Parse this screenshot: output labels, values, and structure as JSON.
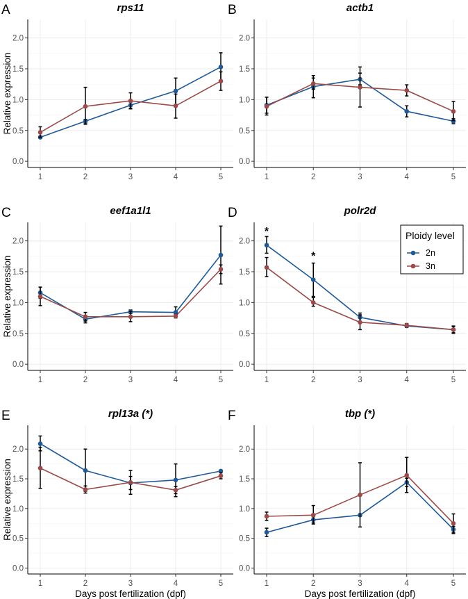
{
  "legend": {
    "title": "Ploidy level",
    "items": [
      {
        "name": "2n",
        "color": "#1f5a96"
      },
      {
        "name": "3n",
        "color": "#9b4a4a"
      }
    ]
  },
  "axis_text": {
    "xlabel": "Days post fertilization (dpf)",
    "ylabel": "Relative expression"
  },
  "chart_data": [
    {
      "type": "line",
      "letter": "A",
      "title": "rps11",
      "x": [
        1,
        2,
        3,
        4,
        5
      ],
      "x_ticks": [
        "1",
        "2",
        "3",
        "4",
        "5"
      ],
      "y_ticks": [
        "0.0",
        "0.5",
        "1.0",
        "1.5",
        "2.0"
      ],
      "ylim": [
        -0.1,
        2.3
      ],
      "grid": true,
      "series": [
        {
          "name": "2n",
          "color": "#1f5a96",
          "values": [
            0.39,
            0.65,
            0.91,
            1.14,
            1.53
          ],
          "err_low": [
            0.37,
            0.62,
            0.86,
            0.92,
            1.31
          ],
          "err_high": [
            0.41,
            0.68,
            0.96,
            1.35,
            1.76
          ]
        },
        {
          "name": "3n",
          "color": "#9b4a4a",
          "values": [
            0.47,
            0.89,
            0.98,
            0.9,
            1.3
          ],
          "err_low": [
            0.39,
            0.6,
            0.85,
            0.7,
            1.15
          ],
          "err_high": [
            0.56,
            1.2,
            1.11,
            1.09,
            1.45
          ]
        }
      ],
      "annotations": []
    },
    {
      "type": "line",
      "letter": "B",
      "title": "actb1",
      "x": [
        1,
        2,
        3,
        4,
        5
      ],
      "x_ticks": [
        "1",
        "2",
        "3",
        "4",
        "5"
      ],
      "y_ticks": [
        "0.0",
        "0.5",
        "1.0",
        "1.5",
        "2.0"
      ],
      "ylim": [
        -0.1,
        2.3
      ],
      "grid": true,
      "series": [
        {
          "name": "2n",
          "color": "#1f5a96",
          "values": [
            0.91,
            1.21,
            1.33,
            0.81,
            0.65
          ],
          "err_low": [
            0.78,
            1.03,
            1.24,
            0.72,
            0.61
          ],
          "err_high": [
            1.04,
            1.39,
            1.43,
            0.9,
            0.69
          ]
        },
        {
          "name": "3n",
          "color": "#9b4a4a",
          "values": [
            0.89,
            1.26,
            1.2,
            1.15,
            0.81
          ],
          "err_low": [
            0.75,
            1.17,
            0.88,
            1.06,
            0.66
          ],
          "err_high": [
            1.04,
            1.35,
            1.53,
            1.24,
            0.97
          ]
        }
      ],
      "annotations": []
    },
    {
      "type": "line",
      "letter": "C",
      "title": "eef1a1l1",
      "x": [
        1,
        2,
        3,
        4,
        5
      ],
      "x_ticks": [
        "1",
        "2",
        "3",
        "4",
        "5"
      ],
      "y_ticks": [
        "0.0",
        "0.5",
        "1.0",
        "1.5",
        "2.0"
      ],
      "ylim": [
        -0.1,
        2.3
      ],
      "grid": true,
      "series": [
        {
          "name": "2n",
          "color": "#1f5a96",
          "values": [
            1.16,
            0.73,
            0.85,
            0.84,
            1.77
          ],
          "err_low": [
            1.07,
            0.67,
            0.82,
            0.76,
            1.3
          ],
          "err_high": [
            1.25,
            0.79,
            0.88,
            0.93,
            2.24
          ]
        },
        {
          "name": "3n",
          "color": "#9b4a4a",
          "values": [
            1.1,
            0.77,
            0.77,
            0.78,
            1.54
          ],
          "err_low": [
            0.95,
            0.7,
            0.69,
            0.75,
            1.47
          ],
          "err_high": [
            1.25,
            0.84,
            0.86,
            0.81,
            1.61
          ]
        }
      ],
      "annotations": []
    },
    {
      "type": "line",
      "letter": "D",
      "title": "polr2d",
      "x": [
        1,
        2,
        3,
        4,
        5
      ],
      "x_ticks": [
        "1",
        "2",
        "3",
        "4",
        "5"
      ],
      "y_ticks": [
        "0.0",
        "0.5",
        "1.0",
        "1.5",
        "2.0"
      ],
      "ylim": [
        -0.1,
        2.3
      ],
      "grid": true,
      "series": [
        {
          "name": "2n",
          "color": "#1f5a96",
          "values": [
            1.93,
            1.37,
            0.76,
            0.62,
            0.56
          ],
          "err_low": [
            1.8,
            1.1,
            0.69,
            0.6,
            0.5
          ],
          "err_high": [
            2.07,
            1.64,
            0.83,
            0.64,
            0.62
          ]
        },
        {
          "name": "3n",
          "color": "#9b4a4a",
          "values": [
            1.57,
            1.0,
            0.68,
            0.63,
            0.56
          ],
          "err_low": [
            1.42,
            0.94,
            0.56,
            0.6,
            0.51
          ],
          "err_high": [
            1.73,
            1.08,
            0.8,
            0.66,
            0.61
          ]
        }
      ],
      "annotations": [
        {
          "text": "*",
          "x": 1,
          "y": 2.2
        },
        {
          "text": "*",
          "x": 2,
          "y": 1.8
        }
      ]
    },
    {
      "type": "line",
      "letter": "E",
      "title": "rpl13a (*)",
      "x": [
        1,
        2,
        3,
        4,
        5
      ],
      "x_ticks": [
        "1",
        "2",
        "3",
        "4",
        "5"
      ],
      "y_ticks": [
        "0.0",
        "0.5",
        "1.0",
        "1.5",
        "2.0"
      ],
      "ylim": [
        -0.1,
        2.4
      ],
      "grid": true,
      "series": [
        {
          "name": "2n",
          "color": "#1f5a96",
          "values": [
            2.09,
            1.64,
            1.43,
            1.48,
            1.63
          ],
          "err_low": [
            1.97,
            1.29,
            1.32,
            1.2,
            1.61
          ],
          "err_high": [
            2.22,
            2.0,
            1.54,
            1.75,
            1.65
          ]
        },
        {
          "name": "3n",
          "color": "#9b4a4a",
          "values": [
            1.68,
            1.32,
            1.44,
            1.31,
            1.55
          ],
          "err_low": [
            1.34,
            1.26,
            1.24,
            1.25,
            1.5
          ],
          "err_high": [
            2.03,
            1.38,
            1.64,
            1.37,
            1.6
          ]
        }
      ],
      "annotations": []
    },
    {
      "type": "line",
      "letter": "F",
      "title": "tbp (*)",
      "x": [
        1,
        2,
        3,
        4,
        5
      ],
      "x_ticks": [
        "1",
        "2",
        "3",
        "4",
        "5"
      ],
      "y_ticks": [
        "0.0",
        "0.5",
        "1.0",
        "1.5",
        "2.0"
      ],
      "ylim": [
        -0.1,
        2.4
      ],
      "grid": true,
      "series": [
        {
          "name": "2n",
          "color": "#1f5a96",
          "values": [
            0.6,
            0.81,
            0.89,
            1.44,
            0.65
          ],
          "err_low": [
            0.53,
            0.76,
            0.87,
            1.37,
            0.6
          ],
          "err_high": [
            0.67,
            0.86,
            0.91,
            1.51,
            0.7
          ]
        },
        {
          "name": "3n",
          "color": "#9b4a4a",
          "values": [
            0.87,
            0.89,
            1.23,
            1.56,
            0.75
          ],
          "err_low": [
            0.8,
            0.74,
            0.69,
            1.27,
            0.58
          ],
          "err_high": [
            0.94,
            1.05,
            1.77,
            1.86,
            0.91
          ]
        }
      ],
      "annotations": []
    }
  ]
}
